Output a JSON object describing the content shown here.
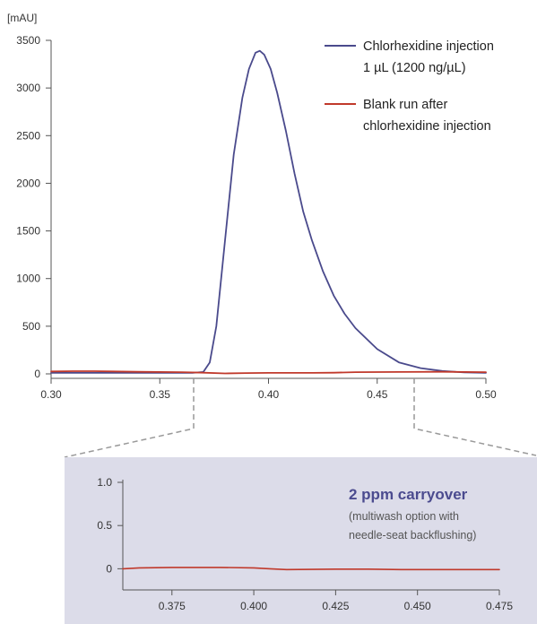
{
  "chart_data": [
    {
      "type": "line",
      "ylabel": "[mAU]",
      "xlim": [
        0.3,
        0.5
      ],
      "ylim": [
        0,
        3500
      ],
      "x_ticks": [
        "0.30",
        "0.35",
        "0.40",
        "0.45",
        "0.50"
      ],
      "y_ticks": [
        "0",
        "500",
        "1000",
        "1500",
        "2000",
        "2500",
        "3000",
        "3500"
      ],
      "grid": false,
      "legend_position": "top-right",
      "series": [
        {
          "name": "Chlorhexidine injection 1 µL (1200 ng/µL)",
          "legend_lines": [
            "Chlorhexidine injection",
            "1 µL (1200 ng/µL)"
          ],
          "color": "#4a4a8c",
          "x": [
            0.3,
            0.32,
            0.34,
            0.355,
            0.365,
            0.37,
            0.373,
            0.376,
            0.38,
            0.384,
            0.388,
            0.391,
            0.394,
            0.396,
            0.398,
            0.401,
            0.404,
            0.408,
            0.412,
            0.416,
            0.42,
            0.425,
            0.43,
            0.435,
            0.44,
            0.45,
            0.46,
            0.47,
            0.48,
            0.49,
            0.5
          ],
          "y": [
            10,
            10,
            10,
            10,
            10,
            20,
            120,
            500,
            1400,
            2300,
            2900,
            3200,
            3370,
            3390,
            3350,
            3200,
            2950,
            2550,
            2100,
            1700,
            1400,
            1080,
            820,
            630,
            480,
            260,
            120,
            60,
            30,
            15,
            10
          ]
        },
        {
          "name": "Blank run after chlorhexidine injection",
          "legend_lines": [
            "Blank run after",
            "chlorhexidine injection"
          ],
          "color": "#c0392b",
          "x": [
            0.3,
            0.31,
            0.32,
            0.34,
            0.36,
            0.37,
            0.38,
            0.39,
            0.4,
            0.42,
            0.43,
            0.44,
            0.46,
            0.48,
            0.5
          ],
          "y": [
            25,
            28,
            28,
            22,
            18,
            12,
            5,
            8,
            10,
            10,
            12,
            18,
            20,
            22,
            18
          ]
        }
      ]
    },
    {
      "type": "line",
      "xlim": [
        0.36,
        0.475
      ],
      "ylim": [
        -0.1,
        1.0
      ],
      "x_ticks": [
        "0.375",
        "0.400",
        "0.425",
        "0.450",
        "0.475"
      ],
      "y_ticks": [
        "0",
        "0.5",
        "1.0"
      ],
      "grid": false,
      "annotation": {
        "title": "2 ppm carryover",
        "subtitle_lines": [
          "(multiwash option with",
          "needle-seat backflushing)"
        ]
      },
      "series": [
        {
          "color": "#c0392b",
          "x": [
            0.36,
            0.365,
            0.375,
            0.39,
            0.4,
            0.405,
            0.41,
            0.425,
            0.435,
            0.445,
            0.46,
            0.475
          ],
          "y": [
            0.0,
            0.01,
            0.015,
            0.015,
            0.01,
            0.0,
            -0.01,
            -0.005,
            -0.005,
            -0.01,
            -0.01,
            -0.01
          ]
        }
      ]
    }
  ]
}
